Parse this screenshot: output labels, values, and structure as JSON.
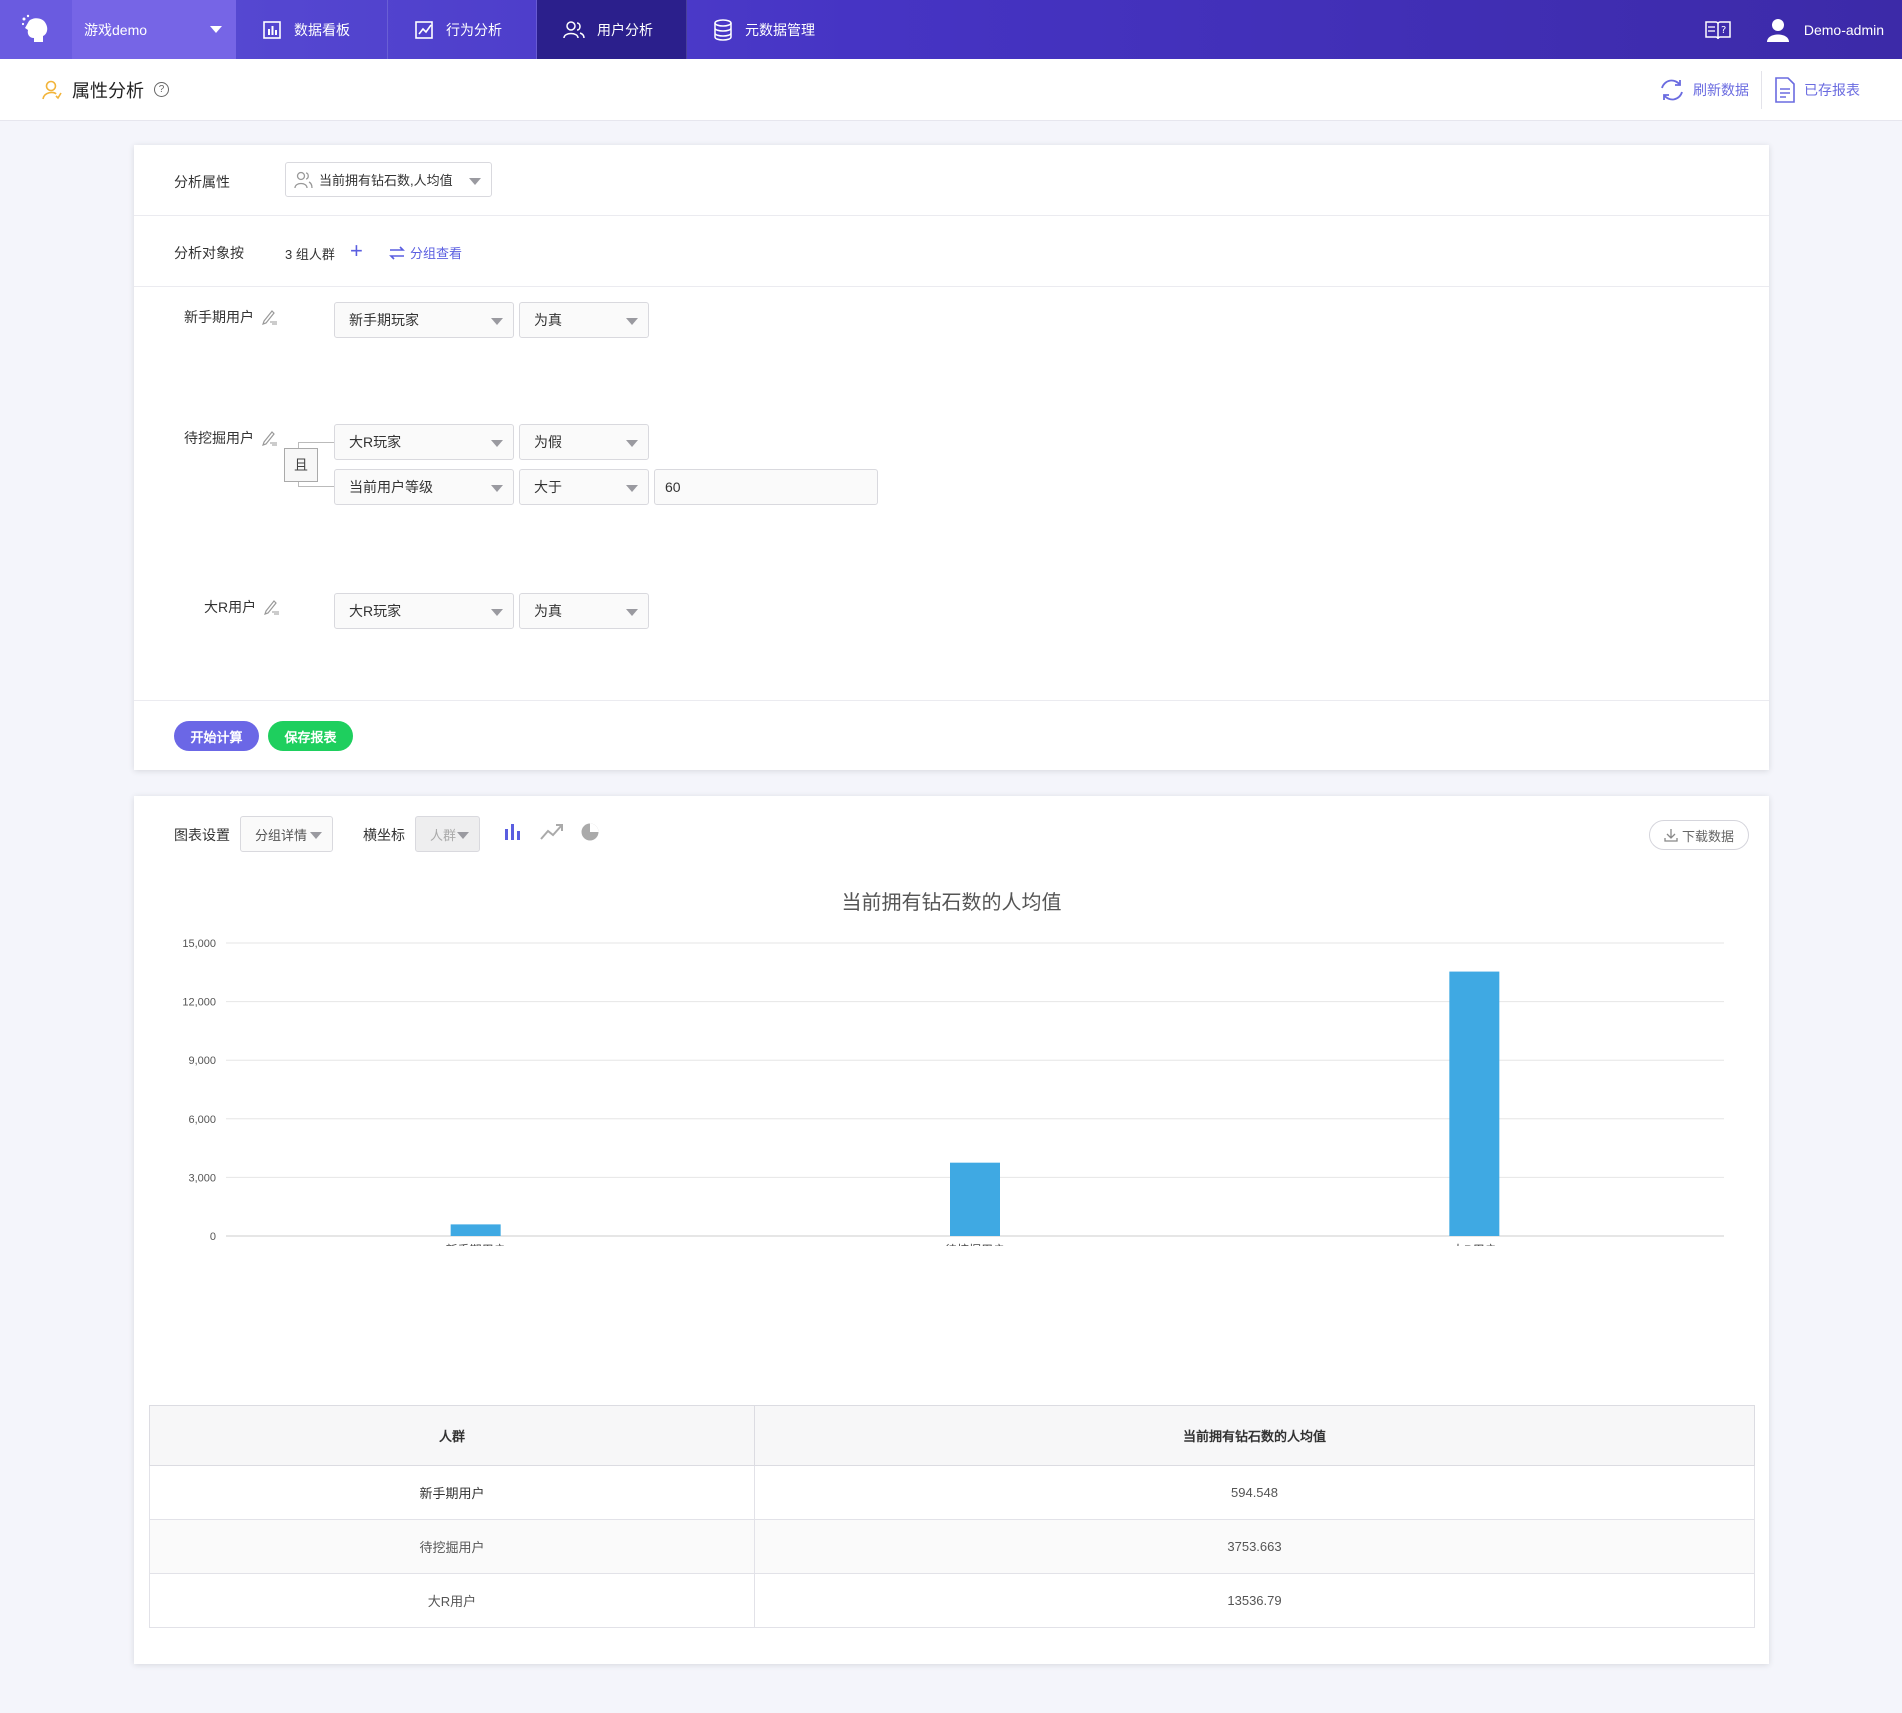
{
  "nav": {
    "project": "游戏demo",
    "items": [
      {
        "label": "数据看板",
        "icon": "bar-chart-icon"
      },
      {
        "label": "行为分析",
        "icon": "trend-chart-icon"
      },
      {
        "label": "用户分析",
        "icon": "users-icon",
        "active": true
      },
      {
        "label": "元数据管理",
        "icon": "database-icon"
      }
    ],
    "user": "Demo-admin"
  },
  "subheader": {
    "title": "属性分析",
    "refresh": "刷新数据",
    "saved_reports": "已存报表"
  },
  "config": {
    "attr_label": "分析属性",
    "attr_value": "当前拥有钻石数,人均值",
    "target_label": "分析对象按",
    "group_count": "3 组人群",
    "group_view": "分组查看",
    "groups": [
      {
        "name": "新手期用户",
        "conditions": [
          {
            "field": "新手期玩家",
            "op": "为真"
          }
        ]
      },
      {
        "name": "待挖掘用户",
        "logic": "且",
        "conditions": [
          {
            "field": "大R玩家",
            "op": "为假"
          },
          {
            "field": "当前用户等级",
            "op": "大于",
            "value": "60"
          }
        ]
      },
      {
        "name": "大R用户",
        "conditions": [
          {
            "field": "大R玩家",
            "op": "为真"
          }
        ]
      }
    ],
    "btn_calc": "开始计算",
    "btn_save": "保存报表"
  },
  "chart_settings": {
    "label": "图表设置",
    "mode": "分组详情",
    "xaxis_label": "横坐标",
    "xaxis_value": "人群",
    "download": "下载数据"
  },
  "chart_data": {
    "type": "bar",
    "title": "当前拥有钻石数的人均值",
    "categories": [
      "新手期用户",
      "待挖掘用户",
      "大R用户"
    ],
    "values": [
      594.548,
      3753.663,
      13536.79
    ],
    "ylim": [
      0,
      15000
    ],
    "yticks": [
      "0",
      "3,000",
      "6,000",
      "9,000",
      "12,000",
      "15,000"
    ],
    "color": "#3fa9e3",
    "grid": true
  },
  "table": {
    "headers": [
      "人群",
      "当前拥有钻石数的人均值"
    ],
    "rows": [
      [
        "新手期用户",
        "594.548"
      ],
      [
        "待挖掘用户",
        "3753.663"
      ],
      [
        "大R用户",
        "13536.79"
      ]
    ]
  }
}
